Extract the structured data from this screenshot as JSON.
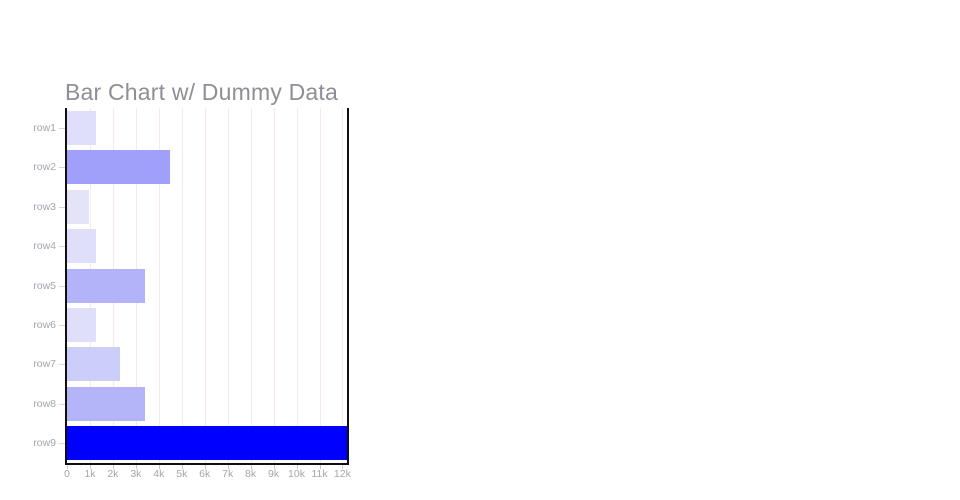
{
  "chart_data": {
    "type": "bar",
    "orientation": "horizontal",
    "title": "Bar Chart w/ Dummy Data",
    "categories": [
      "row1",
      "row2",
      "row3",
      "row4",
      "row5",
      "row6",
      "row7",
      "row8",
      "row9"
    ],
    "values": [
      1250,
      4500,
      950,
      1250,
      3400,
      1250,
      2300,
      3400,
      12200
    ],
    "bar_colors": [
      "#dfdffb",
      "#a09ff9",
      "#e4e4f9",
      "#dfdffa",
      "#b3b3f9",
      "#dfdffa",
      "#cccdf9",
      "#b4b4f9",
      "#0000ff"
    ],
    "xlim": [
      0,
      12200
    ],
    "x_tick_values": [
      0,
      1000,
      2000,
      3000,
      4000,
      5000,
      6000,
      7000,
      8000,
      9000,
      10000,
      11000,
      12000
    ],
    "x_tick_labels": [
      "0",
      "1k",
      "2k",
      "3k",
      "4k",
      "5k",
      "6k",
      "7k",
      "8k",
      "9k",
      "10k",
      "11k",
      "12k"
    ],
    "xlabel": "",
    "ylabel": "",
    "grid": "vertical-only",
    "legend": "none",
    "style": {
      "title_color": "#8e8e96",
      "tick_label_color": "#a4a4ad",
      "grid_color": "#f8e7e9",
      "axis_line_color": "#0f0f0f",
      "y_tick_mark_color": "#eccfd1",
      "background_color": "#ffffff"
    }
  }
}
